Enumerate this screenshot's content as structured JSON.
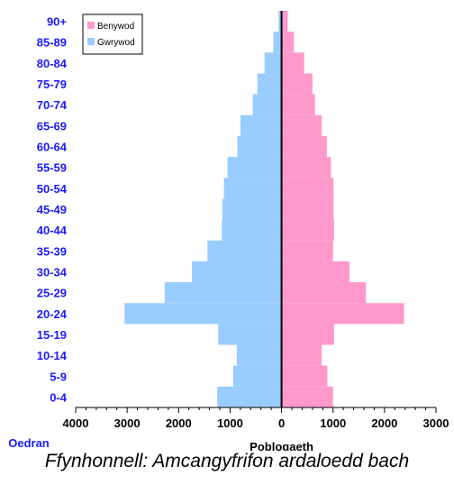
{
  "chart_data": {
    "type": "bar",
    "orientation": "horizontal-population-pyramid",
    "categories": [
      "0-4",
      "5-9",
      "10-14",
      "15-19",
      "20-24",
      "25-29",
      "30-34",
      "35-39",
      "40-44",
      "45-49",
      "50-54",
      "55-59",
      "60-64",
      "65-69",
      "70-74",
      "75-79",
      "80-84",
      "85-89",
      "90+"
    ],
    "series": [
      {
        "name": "Benywod",
        "color": "#ff99cc",
        "side": "right",
        "values": [
          1000,
          890,
          780,
          1020,
          2380,
          1640,
          1320,
          1000,
          1020,
          1010,
          1010,
          960,
          880,
          780,
          650,
          600,
          440,
          240,
          120
        ]
      },
      {
        "name": "Gwrywod",
        "color": "#99ccff",
        "side": "left",
        "values": [
          1250,
          940,
          870,
          1230,
          3050,
          2270,
          1740,
          1440,
          1160,
          1150,
          1120,
          1050,
          860,
          800,
          560,
          470,
          330,
          160,
          60
        ]
      }
    ],
    "xlim": [
      -4000,
      3000
    ],
    "x_ticks": [
      {
        "value": -4000,
        "label": "4000"
      },
      {
        "value": -3000,
        "label": "3000"
      },
      {
        "value": -2000,
        "label": "2000"
      },
      {
        "value": -1000,
        "label": "1000"
      },
      {
        "value": 0,
        "label": "0"
      },
      {
        "value": 1000,
        "label": "1000"
      },
      {
        "value": 2000,
        "label": "2000"
      },
      {
        "value": 3000,
        "label": "3000"
      }
    ],
    "xlabel": "Poblogaeth",
    "ylabel": "Oedran",
    "legend_position": "top-left",
    "grid": false
  },
  "caption": "Ffynhonnell: Amcangyfrifon ardaloedd bach"
}
